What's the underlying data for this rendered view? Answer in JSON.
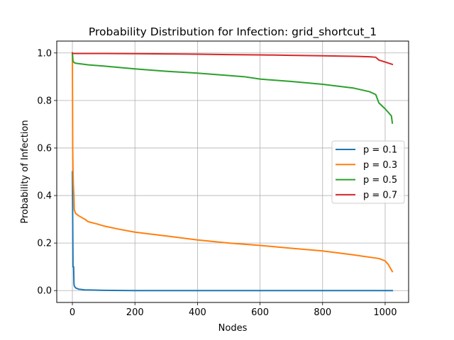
{
  "chart_data": {
    "type": "line",
    "title": "Probability Distribution for Infection: grid_shortcut_1",
    "xlabel": "Nodes",
    "ylabel": "Probability of Infection",
    "xlim": [
      -50,
      1075
    ],
    "ylim": [
      -0.05,
      1.05
    ],
    "xticks": [
      0,
      200,
      400,
      600,
      800,
      1000
    ],
    "yticks": [
      0.0,
      0.2,
      0.4,
      0.6,
      0.8,
      1.0
    ],
    "xtick_labels": [
      "0",
      "200",
      "400",
      "600",
      "800",
      "1000"
    ],
    "ytick_labels": [
      "0.0",
      "0.2",
      "0.4",
      "0.6",
      "0.8",
      "1.0"
    ],
    "grid": true,
    "legend_position": "center-right",
    "series": [
      {
        "name": "p = 0.1",
        "color": "#1f77b4",
        "x": [
          0,
          1,
          2,
          3,
          4,
          5,
          6,
          8,
          12,
          20,
          40,
          100,
          200,
          400,
          600,
          800,
          1023
        ],
        "y": [
          0.5,
          0.3,
          0.1,
          0.1,
          0.1,
          0.03,
          0.02,
          0.015,
          0.01,
          0.006,
          0.003,
          0.001,
          0.0,
          0.0,
          0.0,
          0.0,
          0.0
        ]
      },
      {
        "name": "p = 0.3",
        "color": "#ff7f0e",
        "x": [
          0,
          1,
          2,
          3,
          4,
          5,
          6,
          10,
          20,
          40,
          50,
          80,
          100,
          150,
          200,
          300,
          400,
          500,
          600,
          700,
          800,
          900,
          980,
          1000,
          1010,
          1023
        ],
        "y": [
          1.0,
          0.6,
          0.5,
          0.45,
          0.42,
          0.4,
          0.34,
          0.325,
          0.315,
          0.3,
          0.29,
          0.28,
          0.272,
          0.258,
          0.246,
          0.23,
          0.213,
          0.2,
          0.19,
          0.178,
          0.167,
          0.15,
          0.135,
          0.125,
          0.11,
          0.08
        ]
      },
      {
        "name": "p = 0.5",
        "color": "#2ca02c",
        "x": [
          0,
          2,
          5,
          10,
          50,
          100,
          200,
          300,
          400,
          500,
          550,
          600,
          700,
          800,
          900,
          950,
          970,
          980,
          1000,
          1010,
          1020,
          1023
        ],
        "y": [
          1.0,
          0.965,
          0.96,
          0.957,
          0.95,
          0.945,
          0.933,
          0.923,
          0.915,
          0.905,
          0.9,
          0.89,
          0.88,
          0.868,
          0.852,
          0.837,
          0.825,
          0.79,
          0.765,
          0.75,
          0.735,
          0.705
        ]
      },
      {
        "name": "p = 0.7",
        "color": "#d62728",
        "x": [
          0,
          2,
          50,
          100,
          200,
          300,
          400,
          500,
          600,
          700,
          800,
          900,
          950,
          970,
          980,
          1000,
          1023
        ],
        "y": [
          1.0,
          0.998,
          0.998,
          0.998,
          0.997,
          0.996,
          0.995,
          0.993,
          0.992,
          0.99,
          0.988,
          0.986,
          0.984,
          0.982,
          0.97,
          0.962,
          0.952
        ]
      }
    ]
  }
}
